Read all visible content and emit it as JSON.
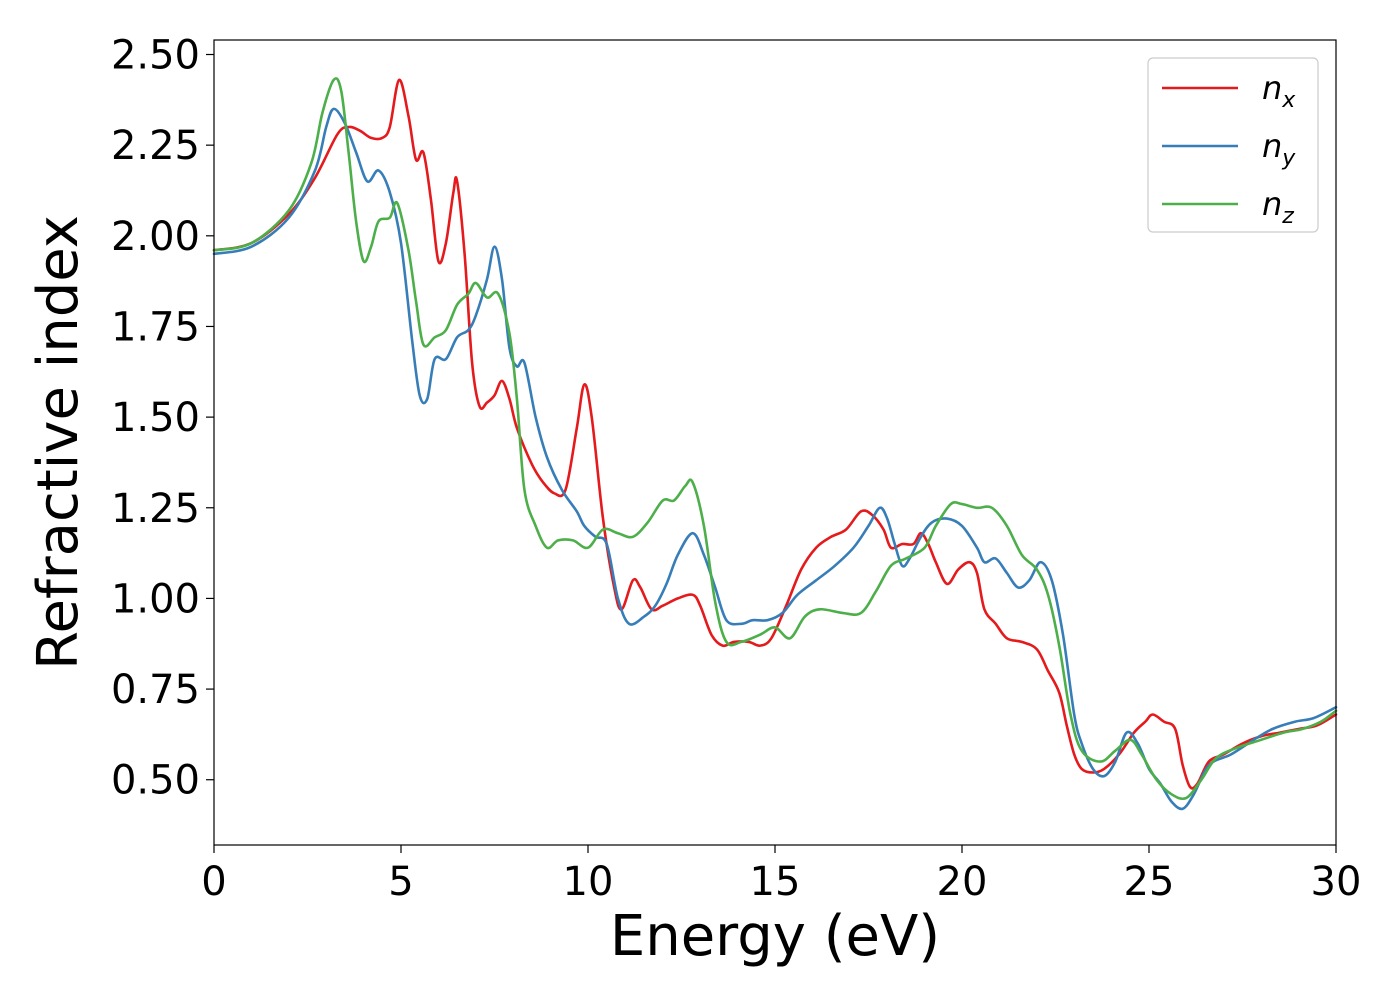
{
  "chart_data": {
    "type": "line",
    "title": "",
    "xlabel": "Energy (eV)",
    "ylabel": "Refractive index",
    "xlim": [
      0,
      30
    ],
    "ylim": [
      0.32,
      2.54
    ],
    "xticks": [
      0,
      5,
      10,
      15,
      20,
      25,
      30
    ],
    "xtick_labels": [
      "0",
      "5",
      "10",
      "15",
      "20",
      "25",
      "30"
    ],
    "yticks": [
      0.5,
      0.75,
      1.0,
      1.25,
      1.5,
      1.75,
      2.0,
      2.25,
      2.5
    ],
    "ytick_labels": [
      "0.50",
      "0.75",
      "1.00",
      "1.25",
      "1.50",
      "1.75",
      "2.00",
      "2.25",
      "2.50"
    ],
    "grid": false,
    "legend_position": "top-right",
    "series": [
      {
        "name": "n",
        "subscript": "x",
        "color": "#e41a1c",
        "points": [
          [
            0,
            1.96
          ],
          [
            1,
            1.98
          ],
          [
            2,
            2.06
          ],
          [
            2.7,
            2.16
          ],
          [
            3.3,
            2.28
          ],
          [
            3.6,
            2.3
          ],
          [
            3.9,
            2.29
          ],
          [
            4.2,
            2.27
          ],
          [
            4.5,
            2.27
          ],
          [
            4.7,
            2.3
          ],
          [
            4.95,
            2.43
          ],
          [
            5.2,
            2.33
          ],
          [
            5.4,
            2.21
          ],
          [
            5.6,
            2.23
          ],
          [
            5.8,
            2.1
          ],
          [
            6.0,
            1.93
          ],
          [
            6.2,
            1.98
          ],
          [
            6.4,
            2.12
          ],
          [
            6.5,
            2.15
          ],
          [
            6.7,
            1.95
          ],
          [
            6.9,
            1.65
          ],
          [
            7.1,
            1.53
          ],
          [
            7.3,
            1.54
          ],
          [
            7.5,
            1.56
          ],
          [
            7.7,
            1.6
          ],
          [
            7.9,
            1.55
          ],
          [
            8.1,
            1.47
          ],
          [
            8.5,
            1.37
          ],
          [
            8.8,
            1.32
          ],
          [
            9.1,
            1.29
          ],
          [
            9.4,
            1.3
          ],
          [
            9.7,
            1.47
          ],
          [
            9.9,
            1.59
          ],
          [
            10.1,
            1.5
          ],
          [
            10.4,
            1.22
          ],
          [
            10.7,
            1.03
          ],
          [
            10.9,
            0.97
          ],
          [
            11.2,
            1.05
          ],
          [
            11.4,
            1.03
          ],
          [
            11.7,
            0.97
          ],
          [
            12.0,
            0.98
          ],
          [
            12.4,
            1.0
          ],
          [
            12.8,
            1.01
          ],
          [
            13.0,
            0.98
          ],
          [
            13.3,
            0.9
          ],
          [
            13.6,
            0.87
          ],
          [
            13.9,
            0.88
          ],
          [
            14.3,
            0.88
          ],
          [
            14.6,
            0.87
          ],
          [
            14.9,
            0.89
          ],
          [
            15.3,
            0.98
          ],
          [
            15.7,
            1.08
          ],
          [
            16.1,
            1.14
          ],
          [
            16.5,
            1.17
          ],
          [
            16.9,
            1.19
          ],
          [
            17.3,
            1.24
          ],
          [
            17.6,
            1.23
          ],
          [
            17.9,
            1.19
          ],
          [
            18.1,
            1.14
          ],
          [
            18.4,
            1.15
          ],
          [
            18.7,
            1.15
          ],
          [
            18.9,
            1.18
          ],
          [
            19.1,
            1.15
          ],
          [
            19.3,
            1.1
          ],
          [
            19.6,
            1.04
          ],
          [
            19.9,
            1.08
          ],
          [
            20.2,
            1.1
          ],
          [
            20.4,
            1.07
          ],
          [
            20.6,
            0.97
          ],
          [
            20.9,
            0.93
          ],
          [
            21.2,
            0.89
          ],
          [
            21.6,
            0.88
          ],
          [
            22.0,
            0.86
          ],
          [
            22.3,
            0.8
          ],
          [
            22.6,
            0.74
          ],
          [
            22.8,
            0.65
          ],
          [
            23.0,
            0.57
          ],
          [
            23.2,
            0.53
          ],
          [
            23.5,
            0.52
          ],
          [
            23.8,
            0.53
          ],
          [
            24.2,
            0.57
          ],
          [
            24.6,
            0.63
          ],
          [
            24.9,
            0.66
          ],
          [
            25.1,
            0.68
          ],
          [
            25.4,
            0.66
          ],
          [
            25.7,
            0.64
          ],
          [
            25.9,
            0.54
          ],
          [
            26.1,
            0.48
          ],
          [
            26.3,
            0.49
          ],
          [
            26.6,
            0.55
          ],
          [
            27.0,
            0.57
          ],
          [
            27.5,
            0.6
          ],
          [
            28.0,
            0.62
          ],
          [
            28.5,
            0.63
          ],
          [
            29.0,
            0.64
          ],
          [
            29.5,
            0.65
          ],
          [
            30,
            0.68
          ]
        ]
      },
      {
        "name": "n",
        "subscript": "y",
        "color": "#377eb8",
        "points": [
          [
            0,
            1.95
          ],
          [
            1,
            1.97
          ],
          [
            2,
            2.05
          ],
          [
            2.7,
            2.18
          ],
          [
            3.0,
            2.3
          ],
          [
            3.2,
            2.35
          ],
          [
            3.5,
            2.31
          ],
          [
            3.8,
            2.23
          ],
          [
            4.1,
            2.15
          ],
          [
            4.4,
            2.18
          ],
          [
            4.7,
            2.12
          ],
          [
            5.0,
            1.98
          ],
          [
            5.3,
            1.71
          ],
          [
            5.5,
            1.56
          ],
          [
            5.7,
            1.55
          ],
          [
            5.9,
            1.66
          ],
          [
            6.2,
            1.66
          ],
          [
            6.5,
            1.72
          ],
          [
            6.8,
            1.74
          ],
          [
            7.0,
            1.78
          ],
          [
            7.3,
            1.88
          ],
          [
            7.5,
            1.97
          ],
          [
            7.7,
            1.88
          ],
          [
            7.9,
            1.69
          ],
          [
            8.1,
            1.64
          ],
          [
            8.3,
            1.65
          ],
          [
            8.6,
            1.5
          ],
          [
            8.9,
            1.39
          ],
          [
            9.3,
            1.3
          ],
          [
            9.7,
            1.24
          ],
          [
            9.9,
            1.2
          ],
          [
            10.2,
            1.17
          ],
          [
            10.5,
            1.15
          ],
          [
            10.8,
            1.0
          ],
          [
            11.1,
            0.93
          ],
          [
            11.5,
            0.95
          ],
          [
            11.8,
            0.98
          ],
          [
            12.1,
            1.04
          ],
          [
            12.4,
            1.12
          ],
          [
            12.8,
            1.18
          ],
          [
            13.1,
            1.12
          ],
          [
            13.4,
            1.03
          ],
          [
            13.7,
            0.94
          ],
          [
            14.1,
            0.93
          ],
          [
            14.4,
            0.94
          ],
          [
            14.8,
            0.94
          ],
          [
            15.2,
            0.96
          ],
          [
            15.6,
            1.01
          ],
          [
            16.1,
            1.05
          ],
          [
            16.6,
            1.09
          ],
          [
            17.1,
            1.14
          ],
          [
            17.5,
            1.2
          ],
          [
            17.8,
            1.25
          ],
          [
            18.0,
            1.22
          ],
          [
            18.2,
            1.15
          ],
          [
            18.4,
            1.09
          ],
          [
            18.6,
            1.11
          ],
          [
            18.9,
            1.17
          ],
          [
            19.2,
            1.21
          ],
          [
            19.6,
            1.22
          ],
          [
            20.0,
            1.2
          ],
          [
            20.4,
            1.14
          ],
          [
            20.6,
            1.1
          ],
          [
            20.9,
            1.11
          ],
          [
            21.2,
            1.07
          ],
          [
            21.5,
            1.03
          ],
          [
            21.8,
            1.05
          ],
          [
            22.1,
            1.1
          ],
          [
            22.4,
            1.05
          ],
          [
            22.7,
            0.9
          ],
          [
            23.0,
            0.68
          ],
          [
            23.2,
            0.6
          ],
          [
            23.5,
            0.53
          ],
          [
            23.8,
            0.51
          ],
          [
            24.1,
            0.55
          ],
          [
            24.4,
            0.63
          ],
          [
            24.7,
            0.6
          ],
          [
            25.0,
            0.53
          ],
          [
            25.3,
            0.49
          ],
          [
            25.6,
            0.44
          ],
          [
            25.9,
            0.42
          ],
          [
            26.2,
            0.46
          ],
          [
            26.6,
            0.54
          ],
          [
            27.2,
            0.57
          ],
          [
            27.8,
            0.61
          ],
          [
            28.3,
            0.64
          ],
          [
            28.9,
            0.66
          ],
          [
            29.4,
            0.67
          ],
          [
            30,
            0.7
          ]
        ]
      },
      {
        "name": "n",
        "subscript": "z",
        "color": "#4daf4a",
        "points": [
          [
            0,
            1.96
          ],
          [
            1,
            1.98
          ],
          [
            2,
            2.07
          ],
          [
            2.6,
            2.2
          ],
          [
            2.9,
            2.34
          ],
          [
            3.2,
            2.43
          ],
          [
            3.4,
            2.4
          ],
          [
            3.6,
            2.23
          ],
          [
            3.8,
            2.04
          ],
          [
            4.0,
            1.93
          ],
          [
            4.2,
            1.97
          ],
          [
            4.4,
            2.04
          ],
          [
            4.7,
            2.05
          ],
          [
            4.9,
            2.09
          ],
          [
            5.2,
            1.96
          ],
          [
            5.4,
            1.82
          ],
          [
            5.6,
            1.7
          ],
          [
            5.9,
            1.72
          ],
          [
            6.2,
            1.74
          ],
          [
            6.5,
            1.81
          ],
          [
            6.8,
            1.84
          ],
          [
            7.0,
            1.87
          ],
          [
            7.3,
            1.83
          ],
          [
            7.6,
            1.84
          ],
          [
            7.9,
            1.73
          ],
          [
            8.1,
            1.55
          ],
          [
            8.3,
            1.3
          ],
          [
            8.6,
            1.2
          ],
          [
            8.9,
            1.14
          ],
          [
            9.2,
            1.16
          ],
          [
            9.6,
            1.16
          ],
          [
            10.0,
            1.14
          ],
          [
            10.4,
            1.19
          ],
          [
            10.8,
            1.18
          ],
          [
            11.2,
            1.17
          ],
          [
            11.6,
            1.21
          ],
          [
            12.0,
            1.27
          ],
          [
            12.3,
            1.27
          ],
          [
            12.6,
            1.31
          ],
          [
            12.8,
            1.32
          ],
          [
            13.1,
            1.2
          ],
          [
            13.4,
            0.99
          ],
          [
            13.7,
            0.88
          ],
          [
            14.1,
            0.88
          ],
          [
            14.6,
            0.9
          ],
          [
            15.0,
            0.92
          ],
          [
            15.4,
            0.89
          ],
          [
            15.8,
            0.95
          ],
          [
            16.2,
            0.97
          ],
          [
            16.8,
            0.96
          ],
          [
            17.3,
            0.96
          ],
          [
            17.7,
            1.02
          ],
          [
            18.1,
            1.09
          ],
          [
            18.5,
            1.11
          ],
          [
            19.0,
            1.14
          ],
          [
            19.3,
            1.2
          ],
          [
            19.7,
            1.26
          ],
          [
            20.0,
            1.26
          ],
          [
            20.4,
            1.25
          ],
          [
            20.8,
            1.25
          ],
          [
            21.2,
            1.2
          ],
          [
            21.6,
            1.12
          ],
          [
            22.0,
            1.08
          ],
          [
            22.3,
            1.01
          ],
          [
            22.6,
            0.87
          ],
          [
            22.9,
            0.68
          ],
          [
            23.2,
            0.58
          ],
          [
            23.7,
            0.55
          ],
          [
            24.1,
            0.58
          ],
          [
            24.5,
            0.61
          ],
          [
            24.8,
            0.57
          ],
          [
            25.2,
            0.5
          ],
          [
            25.6,
            0.46
          ],
          [
            26.0,
            0.45
          ],
          [
            26.4,
            0.5
          ],
          [
            26.8,
            0.56
          ],
          [
            27.4,
            0.59
          ],
          [
            28.0,
            0.61
          ],
          [
            28.6,
            0.63
          ],
          [
            29.1,
            0.64
          ],
          [
            29.6,
            0.66
          ],
          [
            30,
            0.69
          ]
        ]
      }
    ]
  }
}
